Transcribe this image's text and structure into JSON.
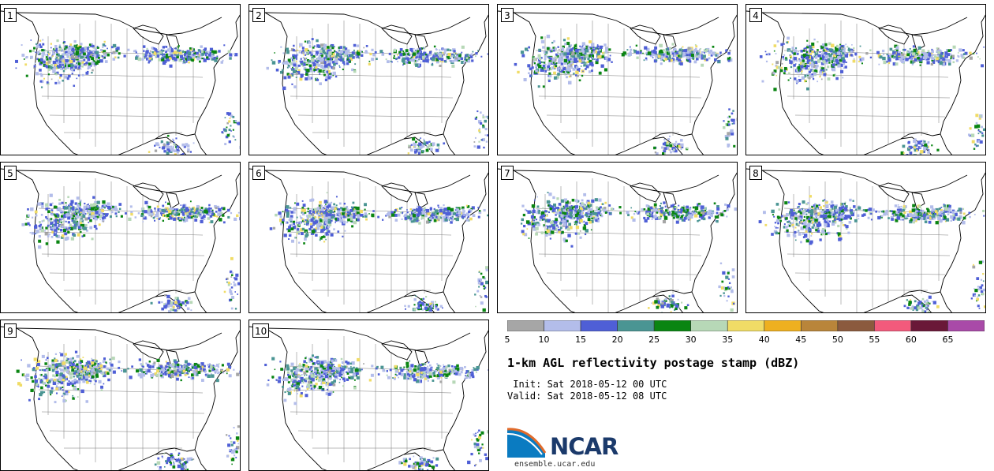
{
  "panels": [
    {
      "label": "1"
    },
    {
      "label": "2"
    },
    {
      "label": "3"
    },
    {
      "label": "4"
    },
    {
      "label": "5"
    },
    {
      "label": "6"
    },
    {
      "label": "7"
    },
    {
      "label": "8"
    },
    {
      "label": "9"
    },
    {
      "label": "10"
    }
  ],
  "colorbar": {
    "colors": [
      "#a6a6a6",
      "#b3bdea",
      "#4f5fd6",
      "#4a9593",
      "#0a8512",
      "#b7d8b7",
      "#f0dc66",
      "#eeb020",
      "#b9853a",
      "#8b5a3e",
      "#f25a7c",
      "#6a1838",
      "#a94aa8"
    ],
    "ticks": [
      "5",
      "10",
      "15",
      "20",
      "25",
      "30",
      "35",
      "40",
      "45",
      "50",
      "55",
      "60",
      "65"
    ]
  },
  "title": "1-km AGL reflectivity postage stamp (dBZ)",
  "init": " Init: Sat 2018-05-12 00 UTC",
  "valid": "Valid: Sat 2018-05-12 08 UTC",
  "logo": {
    "text": "NCAR",
    "url": "ensemble.ucar.edu"
  },
  "map_colors": {
    "state_lines": "#777777",
    "coast": "#000000"
  }
}
